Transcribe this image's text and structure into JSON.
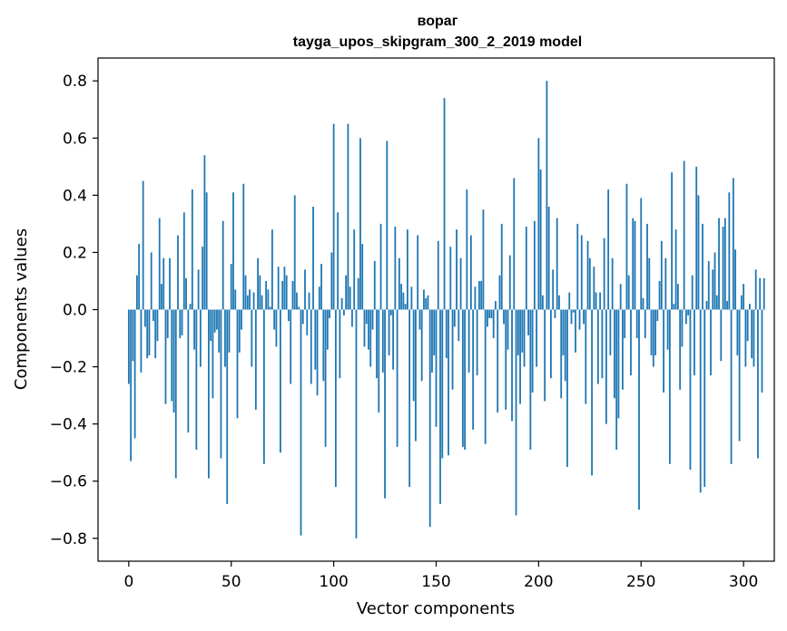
{
  "chart_data": {
    "type": "bar",
    "title": "вораг",
    "subtitle": "tayga_upos_skipgram_300_2_2019 model",
    "xlabel": "Vector components",
    "ylabel": "Components values",
    "xlim": [
      -15,
      315
    ],
    "ylim": [
      -0.88,
      0.88
    ],
    "x_ticks": [
      0,
      50,
      100,
      150,
      200,
      250,
      300
    ],
    "x_tick_labels": [
      "0",
      "50",
      "100",
      "150",
      "200",
      "250",
      "300"
    ],
    "y_ticks": [
      -0.8,
      -0.6,
      -0.4,
      -0.2,
      0.0,
      0.2,
      0.4,
      0.6,
      0.8
    ],
    "y_tick_labels": [
      "−0.8",
      "−0.6",
      "−0.4",
      "−0.2",
      "0.0",
      "0.2",
      "0.4",
      "0.6",
      "0.8"
    ],
    "grid": false,
    "bar_color": "#1f77b4",
    "values": [
      -0.26,
      -0.53,
      -0.18,
      -0.45,
      0.12,
      0.23,
      -0.22,
      0.45,
      -0.06,
      -0.17,
      -0.16,
      0.2,
      -0.04,
      -0.17,
      -0.11,
      0.32,
      0.09,
      0.18,
      -0.33,
      -0.1,
      0.18,
      -0.32,
      -0.36,
      -0.59,
      0.26,
      -0.1,
      -0.09,
      0.34,
      0.11,
      -0.43,
      0.02,
      0.42,
      -0.14,
      -0.49,
      0.14,
      -0.2,
      0.22,
      0.54,
      0.41,
      -0.59,
      -0.11,
      -0.31,
      -0.08,
      -0.07,
      -0.15,
      -0.52,
      0.31,
      -0.2,
      -0.68,
      -0.15,
      0.16,
      0.41,
      0.07,
      -0.38,
      -0.15,
      -0.07,
      0.44,
      0.12,
      0.05,
      0.07,
      -0.2,
      0.06,
      -0.35,
      0.18,
      0.12,
      0.05,
      -0.54,
      0.1,
      0.07,
      0.01,
      0.28,
      -0.07,
      -0.13,
      0.15,
      -0.5,
      0.1,
      0.15,
      0.12,
      -0.04,
      -0.26,
      0.1,
      0.4,
      0.06,
      0.01,
      -0.79,
      -0.05,
      0.14,
      -0.09,
      0.06,
      -0.26,
      0.36,
      -0.21,
      -0.3,
      0.08,
      0.16,
      -0.25,
      -0.48,
      -0.14,
      -0.03,
      0.2,
      0.65,
      -0.62,
      0.34,
      -0.24,
      0.04,
      -0.02,
      0.12,
      0.65,
      0.08,
      -0.06,
      0.28,
      -0.8,
      0.11,
      0.6,
      0.23,
      -0.13,
      -0.05,
      -0.14,
      -0.2,
      -0.07,
      0.17,
      -0.24,
      -0.36,
      0.3,
      -0.22,
      -0.66,
      0.59,
      -0.16,
      -0.02,
      -0.21,
      0.29,
      -0.48,
      0.18,
      0.09,
      0.06,
      0.02,
      0.28,
      -0.62,
      0.08,
      -0.32,
      -0.46,
      0.26,
      -0.07,
      -0.25,
      0.07,
      0.04,
      0.05,
      -0.76,
      -0.22,
      -0.16,
      -0.41,
      0.24,
      -0.68,
      -0.52,
      0.74,
      -0.17,
      -0.51,
      0.22,
      -0.28,
      -0.06,
      0.28,
      -0.11,
      0.18,
      -0.48,
      -0.49,
      0.42,
      -0.22,
      0.26,
      -0.42,
      0.08,
      -0.23,
      0.1,
      0.1,
      0.35,
      -0.47,
      -0.06,
      -0.03,
      -0.03,
      -0.1,
      0.03,
      -0.36,
      0.12,
      0.3,
      -0.05,
      -0.35,
      -0.14,
      0.19,
      -0.39,
      0.46,
      -0.72,
      -0.16,
      -0.33,
      -0.15,
      -0.2,
      0.29,
      -0.09,
      -0.49,
      -0.29,
      0.31,
      -0.2,
      0.6,
      0.49,
      0.05,
      -0.32,
      0.8,
      0.36,
      -0.24,
      0.14,
      -0.03,
      0.32,
      0.05,
      -0.31,
      -0.16,
      -0.25,
      -0.55,
      0.06,
      -0.05,
      -0.01,
      -0.15,
      0.3,
      -0.07,
      0.26,
      -0.05,
      -0.33,
      0.24,
      0.18,
      -0.58,
      0.15,
      0.06,
      -0.26,
      0.06,
      -0.24,
      0.25,
      -0.4,
      0.42,
      -0.16,
      0.18,
      -0.31,
      -0.49,
      -0.38,
      0.09,
      -0.28,
      -0.1,
      0.44,
      0.12,
      -0.23,
      0.32,
      0.31,
      -0.1,
      -0.7,
      0.39,
      0.04,
      -0.1,
      0.3,
      0.18,
      -0.16,
      -0.2,
      -0.16,
      -0.04,
      0.1,
      0.24,
      -0.29,
      0.18,
      -0.14,
      -0.54,
      0.48,
      0.02,
      0.28,
      0.09,
      -0.28,
      -0.13,
      0.52,
      -0.05,
      -0.02,
      -0.56,
      0.12,
      -0.23,
      0.5,
      0.4,
      -0.64,
      0.3,
      -0.62,
      0.03,
      0.17,
      -0.23,
      0.14,
      0.2,
      0.05,
      0.32,
      -0.18,
      0.29,
      0.32,
      0.03,
      0.41,
      -0.54,
      0.46,
      0.21,
      -0.16,
      -0.46,
      0.05,
      0.09,
      -0.2,
      -0.11,
      0.02,
      -0.17,
      -0.2,
      0.14,
      -0.52,
      0.11,
      -0.29,
      0.11
    ]
  }
}
